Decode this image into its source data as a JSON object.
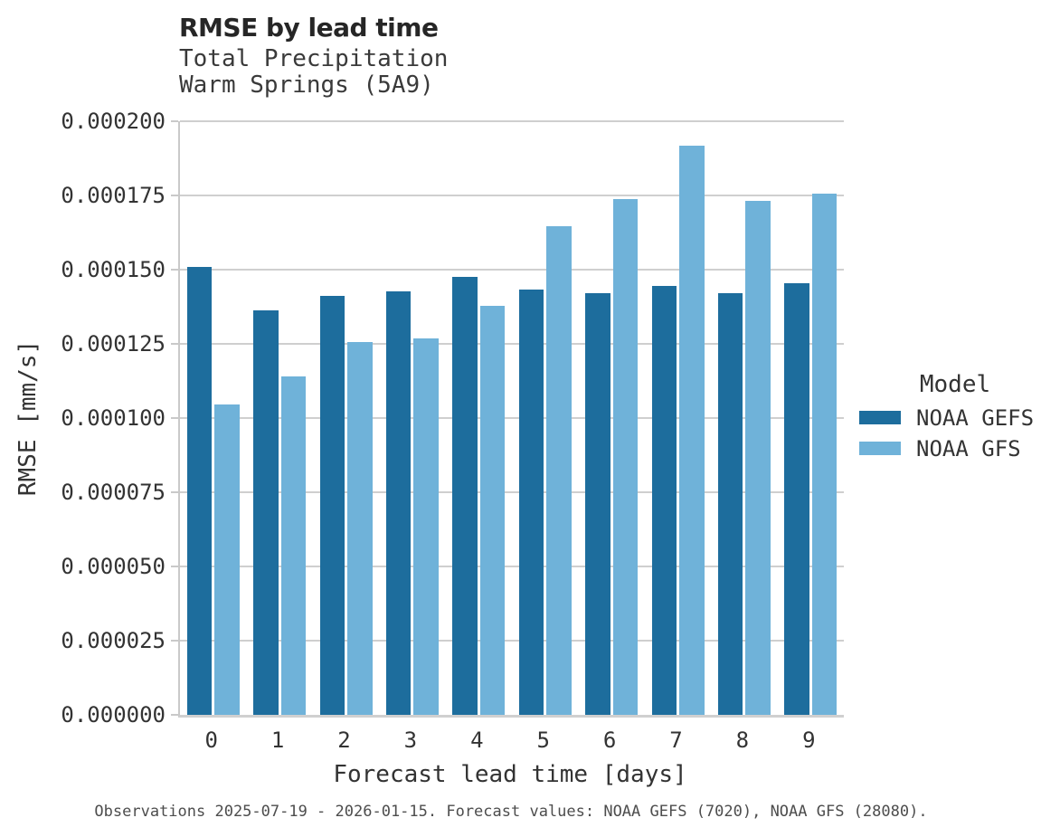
{
  "figure": {
    "title": "RMSE by lead time",
    "subtitle1": "Total Precipitation",
    "subtitle2": "Warm Springs (5A9)",
    "footer": "Observations 2025-07-19 - 2026-01-15. Forecast values: NOAA GEFS (7020), NOAA GFS (28080)."
  },
  "chart_data": {
    "type": "bar",
    "title": "RMSE by lead time",
    "subtitle": [
      "Total Precipitation",
      "Warm Springs (5A9)"
    ],
    "xlabel": "Forecast lead time [days]",
    "ylabel": "RMSE [mm/s]",
    "categories": [
      "0",
      "1",
      "2",
      "3",
      "4",
      "5",
      "6",
      "7",
      "8",
      "9"
    ],
    "series": [
      {
        "name": "NOAA GEFS",
        "color": "#1d6d9d",
        "values": [
          0.000151,
          0.0001362,
          0.0001412,
          0.0001427,
          0.0001477,
          0.0001432,
          0.000142,
          0.0001445,
          0.000142,
          0.0001455
        ]
      },
      {
        "name": "NOAA GFS",
        "color": "#6fb2d9",
        "values": [
          0.0001046,
          0.0001141,
          0.0001255,
          0.0001269,
          0.0001378,
          0.0001646,
          0.0001737,
          0.0001917,
          0.0001733,
          0.0001755
        ]
      }
    ],
    "ylim": [
      0,
      0.0002
    ],
    "y_tick_step": 2.5e-05,
    "y_tick_decimals": 6,
    "grid": "horizontal",
    "gridline_color": "#cfcfcf",
    "legend_title": "Model",
    "legend_position": "right"
  }
}
